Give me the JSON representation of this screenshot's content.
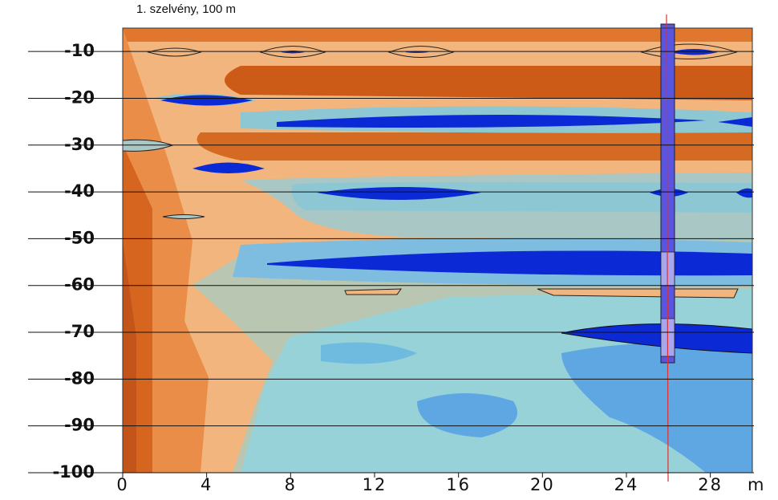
{
  "chart_data": {
    "type": "contour",
    "title": "1. szelvény, 100 m",
    "x_unit": "m",
    "xlim": [
      0,
      30
    ],
    "xticks": [
      0,
      4,
      8,
      12,
      16,
      20,
      24,
      28
    ],
    "ylim": [
      -100,
      -5
    ],
    "yticks": [
      -10,
      -20,
      -30,
      -40,
      -50,
      -60,
      -70,
      -80,
      -90,
      -100
    ],
    "grid": true
  }
}
